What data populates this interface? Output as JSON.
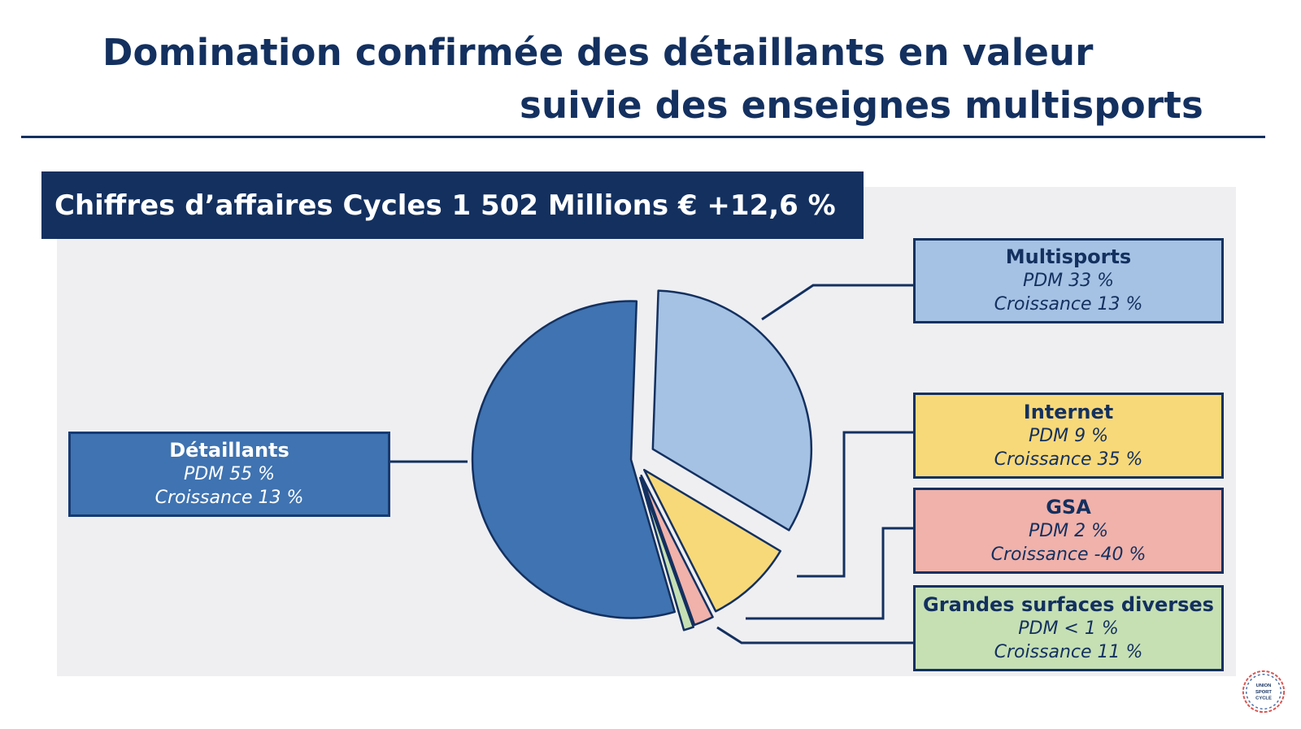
{
  "title_line1": "Domination confirmée des détaillants en valeur",
  "title_line2": "suivie des enseignes multisports",
  "chart_data": {
    "type": "pie",
    "title": "Chiffres d’affaires Cycles 1 502 Millions € +12,6 %",
    "slices": [
      {
        "name": "Multisports",
        "pdm": 33,
        "pdm_label": "PDM 33 %",
        "growth_label": "Croissance  13 %",
        "color": "#a5c2e4"
      },
      {
        "name": "Internet",
        "pdm": 9,
        "pdm_label": "PDM 9 %",
        "growth_label": "Croissance  35 %",
        "color": "#f8d979"
      },
      {
        "name": "GSA",
        "pdm": 2,
        "pdm_label": "PDM 2 %",
        "growth_label": "Croissance  -40 %",
        "color": "#f0b2ab"
      },
      {
        "name": "Grandes surfaces diverses",
        "pdm": 1,
        "pdm_label": "PDM < 1 %",
        "growth_label": "Croissance  11 %",
        "color": "#c6e0b4"
      },
      {
        "name": "Détaillants",
        "pdm": 55,
        "pdm_label": "PDM 55 %",
        "growth_label": "Croissance  13 %",
        "color": "#3f73b1"
      }
    ]
  },
  "logo_text": "UNION SPORT CYCLE"
}
